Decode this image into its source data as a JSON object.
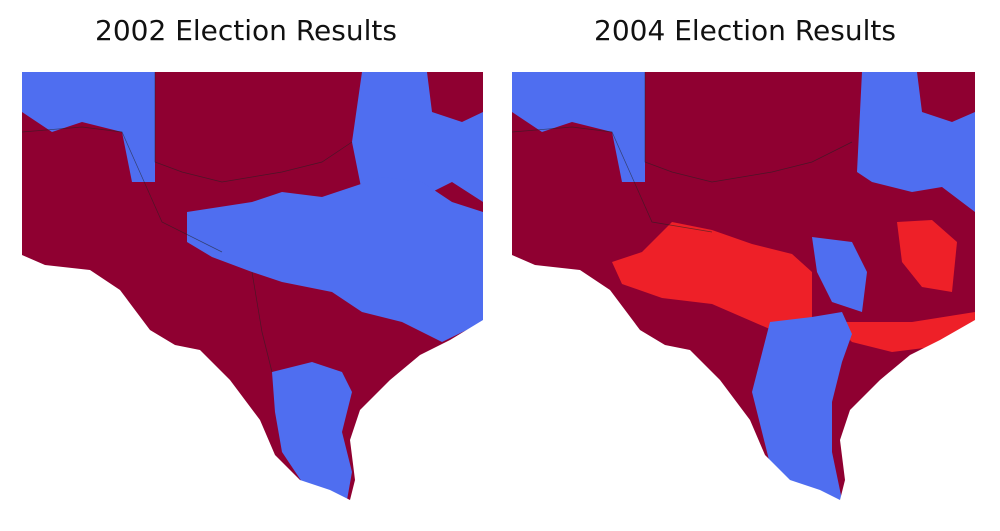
{
  "maps": [
    {
      "title": "2002 Election Results"
    },
    {
      "title": "2004 Election Results"
    }
  ]
}
